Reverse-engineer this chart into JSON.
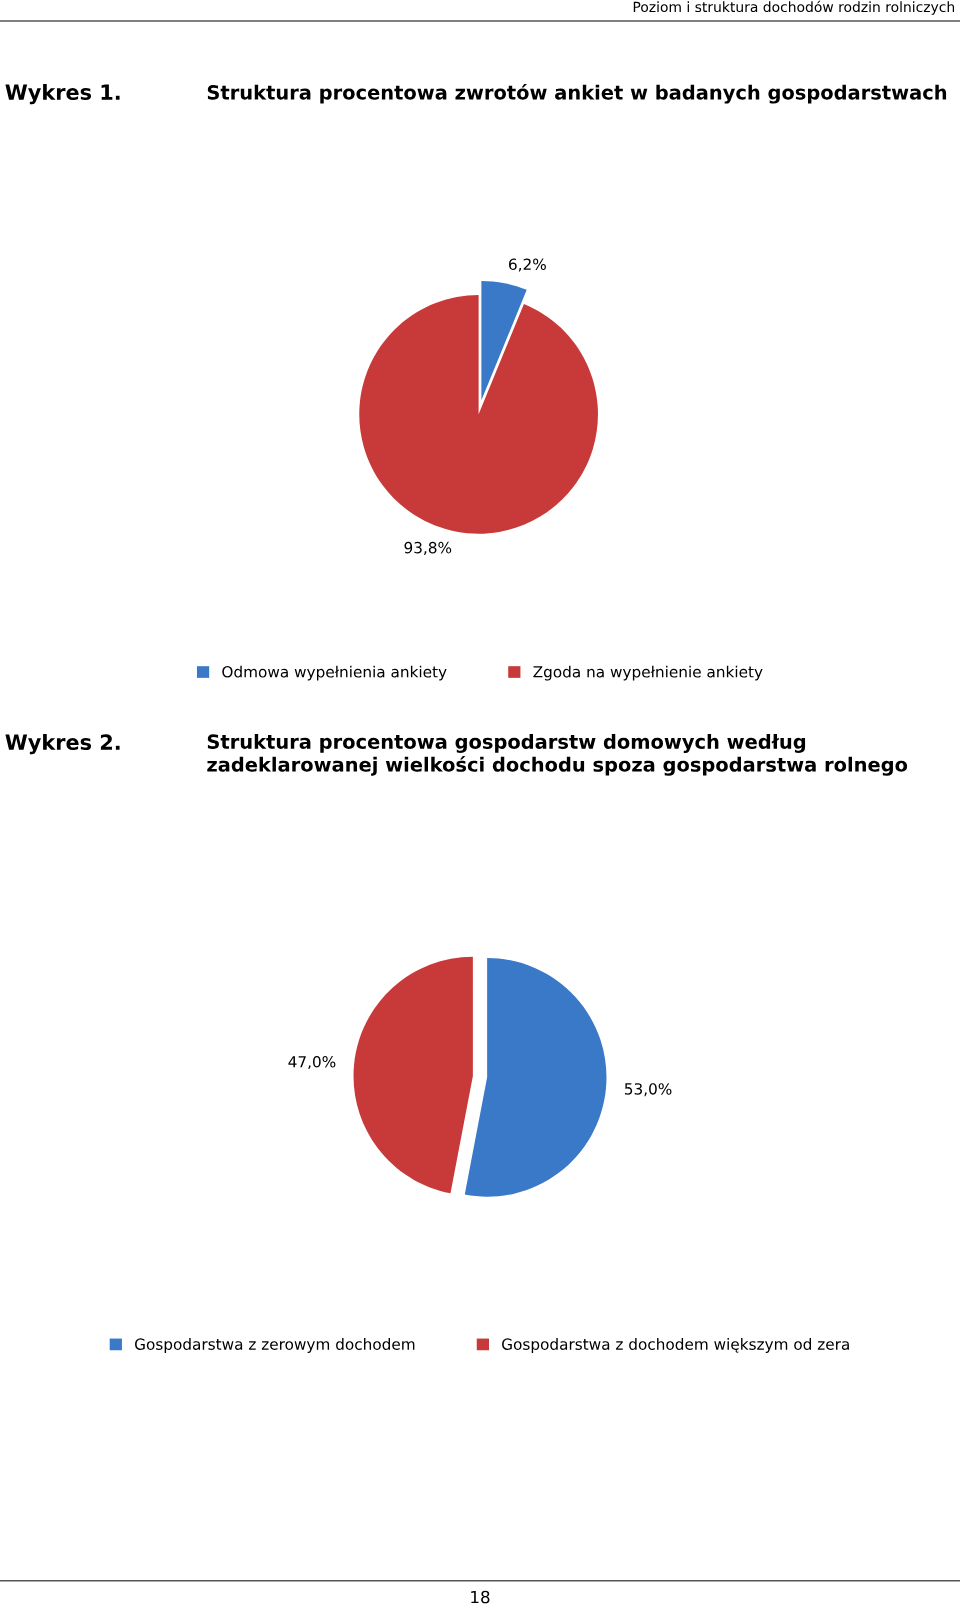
{
  "chart_data": [
    {
      "type": "pie",
      "title": "Struktura procentowa zwrotów ankiet w badanych gospodarstwach",
      "categories": [
        "Odmowa wypełnienia ankiety",
        "Zgoda na wypełnienie ankiety"
      ],
      "values": [
        6.2,
        93.8
      ],
      "colors": [
        "#3a78c8",
        "#c83a3a"
      ],
      "value_labels": [
        "6,2%",
        "93,8%"
      ],
      "legend": "bottom",
      "annotations": [
        "Wykres 1.",
        "Poziom i struktura dochodów rodzin rolniczych"
      ]
    },
    {
      "type": "pie",
      "title": "Struktura procentowa gospodarstw domowych według zadeklarowanej wielkości dochodu spoza gospodarstwa rolnego",
      "categories": [
        "Gospodarstwa z zerowym dochodem",
        "Gospodarstwa z dochodem większym od zera"
      ],
      "values": [
        53.0,
        47.0
      ],
      "colors": [
        "#3a78c8",
        "#c83a3a"
      ],
      "value_labels": [
        "53,0%",
        "47,0%"
      ],
      "legend": "bottom",
      "annotations": [
        "Wykres 2.",
        "18"
      ]
    }
  ]
}
